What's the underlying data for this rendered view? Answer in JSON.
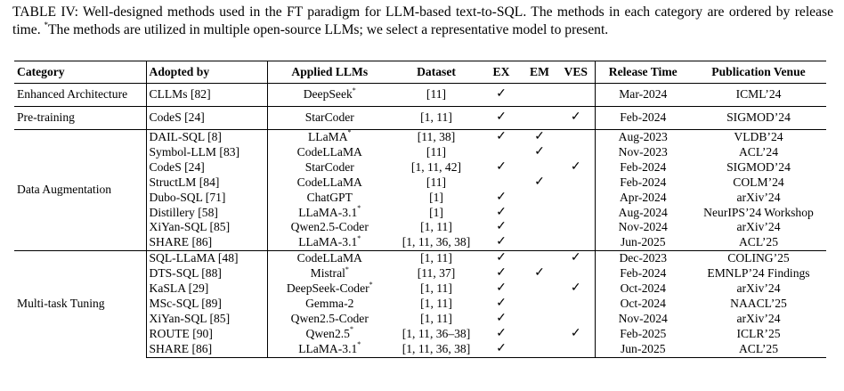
{
  "caption": {
    "label": "TABLE IV:",
    "text": "Well-designed methods used in the FT paradigm for LLM-based text-to-SQL. The methods in each category are ordered by release time.",
    "footnote_mark": "*",
    "footnote": "The methods are utilized in multiple open-source LLMs; we select a representative model to present."
  },
  "columns": [
    "Category",
    "Adopted by",
    "Applied LLMs",
    "Dataset",
    "EX",
    "EM",
    "VES",
    "Release Time",
    "Publication Venue"
  ],
  "groups": [
    {
      "category": "Enhanced Architecture",
      "rows": [
        {
          "adopted": "CLLMs [82]",
          "llm": "DeepSeek",
          "star": "*",
          "dataset": "[11]",
          "ex": "✓",
          "em": "",
          "ves": "",
          "release": "Mar-2024",
          "venue": "ICML’24"
        }
      ]
    },
    {
      "category": "Pre-training",
      "rows": [
        {
          "adopted": "CodeS [24]",
          "llm": "StarCoder",
          "star": "",
          "dataset": "[1, 11]",
          "ex": "✓",
          "em": "",
          "ves": "✓",
          "release": "Feb-2024",
          "venue": "SIGMOD’24"
        }
      ]
    },
    {
      "category": "Data Augmentation",
      "rows": [
        {
          "adopted": "DAIL-SQL [8]",
          "llm": "LLaMA",
          "star": "*",
          "dataset": "[11, 38]",
          "ex": "✓",
          "em": "✓",
          "ves": "",
          "release": "Aug-2023",
          "venue": "VLDB’24"
        },
        {
          "adopted": "Symbol-LLM [83]",
          "llm": "CodeLLaMA",
          "star": "",
          "dataset": "[11]",
          "ex": "",
          "em": "✓",
          "ves": "",
          "release": "Nov-2023",
          "venue": "ACL’24"
        },
        {
          "adopted": "CodeS [24]",
          "llm": "StarCoder",
          "star": "",
          "dataset": "[1, 11, 42]",
          "ex": "✓",
          "em": "",
          "ves": "✓",
          "release": "Feb-2024",
          "venue": "SIGMOD’24"
        },
        {
          "adopted": "StructLM [84]",
          "llm": "CodeLLaMA",
          "star": "",
          "dataset": "[11]",
          "ex": "",
          "em": "✓",
          "ves": "",
          "release": "Feb-2024",
          "venue": "COLM’24"
        },
        {
          "adopted": "Dubo-SQL [71]",
          "llm": "ChatGPT",
          "star": "",
          "dataset": "[1]",
          "ex": "✓",
          "em": "",
          "ves": "",
          "release": "Apr-2024",
          "venue": "arXiv’24"
        },
        {
          "adopted": "Distillery [58]",
          "llm": "LLaMA-3.1",
          "star": "*",
          "dataset": "[1]",
          "ex": "✓",
          "em": "",
          "ves": "",
          "release": "Aug-2024",
          "venue": "NeurIPS’24 Workshop"
        },
        {
          "adopted": "XiYan-SQL [85]",
          "llm": "Qwen2.5-Coder",
          "star": "",
          "dataset": "[1, 11]",
          "ex": "✓",
          "em": "",
          "ves": "",
          "release": "Nov-2024",
          "venue": "arXiv’24"
        },
        {
          "adopted": "SHARE [86]",
          "llm": "LLaMA-3.1",
          "star": "*",
          "dataset": "[1, 11, 36, 38]",
          "ex": "✓",
          "em": "",
          "ves": "",
          "release": "Jun-2025",
          "venue": "ACL’25"
        }
      ]
    },
    {
      "category": "Multi-task Tuning",
      "rows": [
        {
          "adopted": "SQL-LLaMA [48]",
          "llm": "CodeLLaMA",
          "star": "",
          "dataset": "[1, 11]",
          "ex": "✓",
          "em": "",
          "ves": "✓",
          "release": "Dec-2023",
          "venue": "COLING’25"
        },
        {
          "adopted": "DTS-SQL [88]",
          "llm": "Mistral",
          "star": "*",
          "dataset": "[11, 37]",
          "ex": "✓",
          "em": "✓",
          "ves": "",
          "release": "Feb-2024",
          "venue": "EMNLP’24 Findings"
        },
        {
          "adopted": "KaSLA [29]",
          "llm": "DeepSeek-Coder",
          "star": "*",
          "dataset": "[1, 11]",
          "ex": "✓",
          "em": "",
          "ves": "✓",
          "release": "Oct-2024",
          "venue": "arXiv’24"
        },
        {
          "adopted": "MSc-SQL [89]",
          "llm": "Gemma-2",
          "star": "",
          "dataset": "[1, 11]",
          "ex": "✓",
          "em": "",
          "ves": "",
          "release": "Oct-2024",
          "venue": "NAACL’25"
        },
        {
          "adopted": "XiYan-SQL [85]",
          "llm": "Qwen2.5-Coder",
          "star": "",
          "dataset": "[1, 11]",
          "ex": "✓",
          "em": "",
          "ves": "",
          "release": "Nov-2024",
          "venue": "arXiv’24"
        },
        {
          "adopted": "ROUTE [90]",
          "llm": "Qwen2.5",
          "star": "*",
          "dataset": "[1, 11, 36–38]",
          "ex": "✓",
          "em": "",
          "ves": "✓",
          "release": "Feb-2025",
          "venue": "ICLR’25"
        },
        {
          "adopted": "SHARE [86]",
          "llm": "LLaMA-3.1",
          "star": "*",
          "dataset": "[1, 11, 36, 38]",
          "ex": "✓",
          "em": "",
          "ves": "",
          "release": "Jun-2025",
          "venue": "ACL’25"
        }
      ]
    }
  ]
}
